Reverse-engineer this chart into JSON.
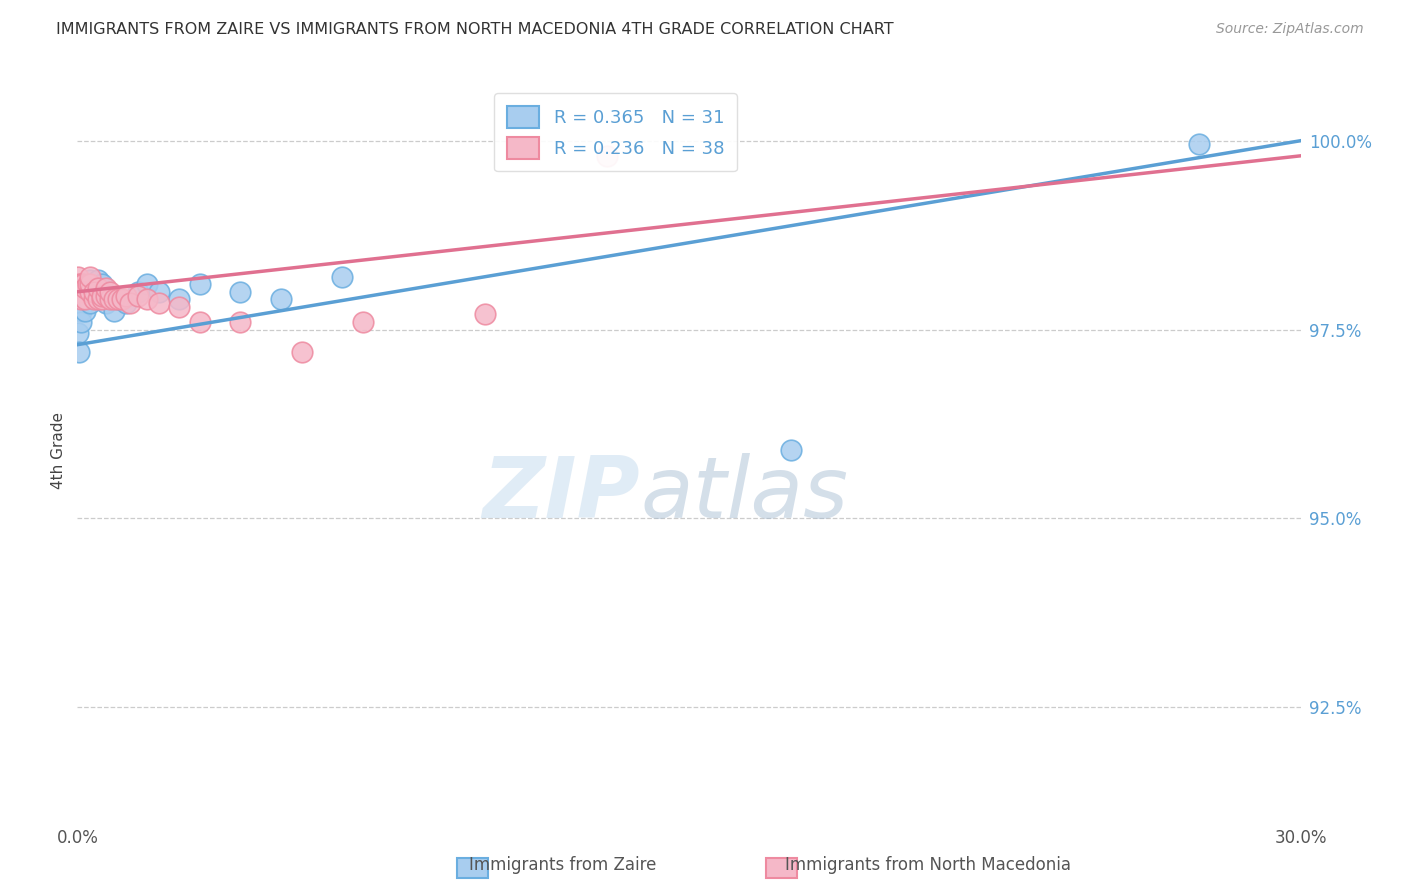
{
  "title": "IMMIGRANTS FROM ZAIRE VS IMMIGRANTS FROM NORTH MACEDONIA 4TH GRADE CORRELATION CHART",
  "source": "Source: ZipAtlas.com",
  "ylabel": "4th Grade",
  "xlim": [
    0.0,
    0.3
  ],
  "ylim": [
    0.91,
    1.008
  ],
  "x_ticks": [
    0.0,
    0.05,
    0.1,
    0.15,
    0.2,
    0.25,
    0.3
  ],
  "x_tick_labels": [
    "0.0%",
    "",
    "",
    "",
    "",
    "",
    "30.0%"
  ],
  "y_ticks": [
    0.925,
    0.95,
    0.975,
    1.0
  ],
  "y_tick_labels": [
    "92.5%",
    "95.0%",
    "97.5%",
    "100.0%"
  ],
  "legend_zaire": "R = 0.365   N = 31",
  "legend_macedonia": "R = 0.236   N = 38",
  "color_zaire_fill": "#A8CDEF",
  "color_macedonia_fill": "#F5B8C8",
  "color_zaire_edge": "#6AAEE0",
  "color_macedonia_edge": "#EE8AA0",
  "color_zaire_line": "#5A9FD4",
  "color_macedonia_line": "#E07090",
  "watermark_zip": "ZIP",
  "watermark_atlas": "atlas",
  "zaire_x": [
    0.0002,
    0.0005,
    0.001,
    0.001,
    0.0015,
    0.002,
    0.002,
    0.0025,
    0.003,
    0.003,
    0.003,
    0.004,
    0.004,
    0.005,
    0.005,
    0.006,
    0.007,
    0.008,
    0.009,
    0.01,
    0.012,
    0.015,
    0.017,
    0.02,
    0.025,
    0.03,
    0.04,
    0.05,
    0.065,
    0.175,
    0.275
  ],
  "zaire_y": [
    0.9745,
    0.972,
    0.9775,
    0.976,
    0.979,
    0.9775,
    0.98,
    0.981,
    0.9785,
    0.98,
    0.9815,
    0.98,
    0.9795,
    0.98,
    0.9815,
    0.981,
    0.9785,
    0.9795,
    0.9775,
    0.979,
    0.9785,
    0.98,
    0.981,
    0.98,
    0.979,
    0.981,
    0.98,
    0.979,
    0.982,
    0.959,
    0.9995
  ],
  "macedonia_x": [
    0.0002,
    0.0003,
    0.0005,
    0.0008,
    0.001,
    0.001,
    0.0015,
    0.002,
    0.002,
    0.0025,
    0.003,
    0.003,
    0.003,
    0.004,
    0.004,
    0.005,
    0.005,
    0.006,
    0.006,
    0.007,
    0.007,
    0.008,
    0.008,
    0.009,
    0.01,
    0.011,
    0.012,
    0.013,
    0.015,
    0.017,
    0.02,
    0.025,
    0.03,
    0.04,
    0.055,
    0.07,
    0.1,
    0.13
  ],
  "macedonia_y": [
    0.982,
    0.98,
    0.981,
    0.98,
    0.979,
    0.981,
    0.981,
    0.979,
    0.9805,
    0.981,
    0.98,
    0.981,
    0.982,
    0.979,
    0.98,
    0.979,
    0.9805,
    0.979,
    0.9795,
    0.9795,
    0.9805,
    0.979,
    0.98,
    0.979,
    0.979,
    0.979,
    0.9795,
    0.9785,
    0.9795,
    0.979,
    0.9785,
    0.978,
    0.976,
    0.976,
    0.972,
    0.976,
    0.977,
    0.998
  ],
  "zaire_line_x": [
    0.0,
    0.3
  ],
  "zaire_line_y": [
    0.973,
    1.0
  ],
  "macedonia_line_x": [
    0.0,
    0.3
  ],
  "macedonia_line_y": [
    0.98,
    0.998
  ]
}
